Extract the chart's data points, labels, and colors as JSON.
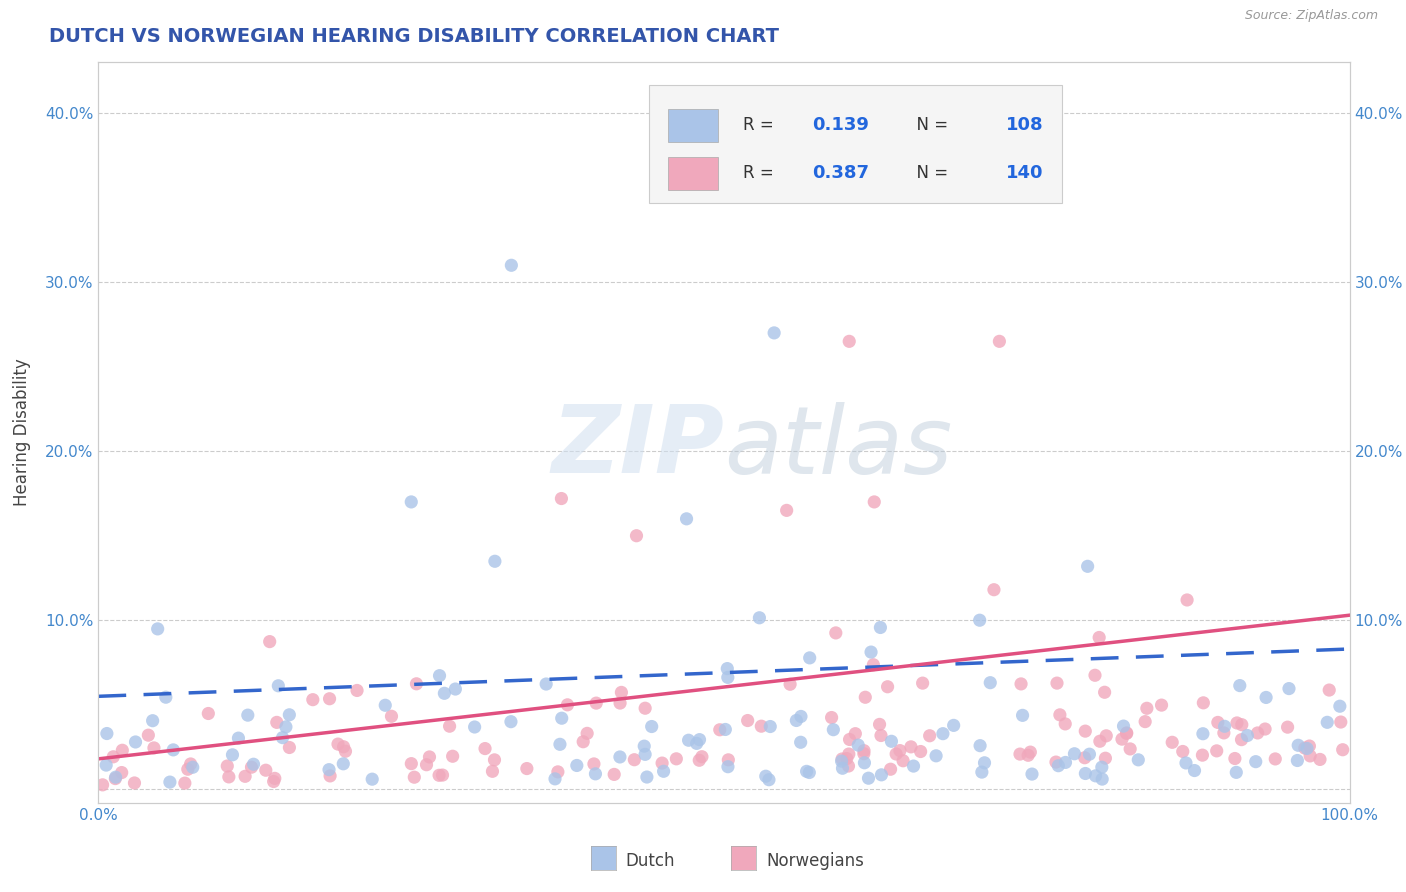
{
  "title": "DUTCH VS NORWEGIAN HEARING DISABILITY CORRELATION CHART",
  "source": "Source: ZipAtlas.com",
  "ylabel": "Hearing Disability",
  "xlabel": "",
  "xlim": [
    0,
    1
  ],
  "ylim": [
    -0.008,
    0.43
  ],
  "yticks": [
    0.0,
    0.1,
    0.2,
    0.3,
    0.4
  ],
  "ytick_labels_left": [
    "",
    "10.0%",
    "20.0%",
    "30.0%",
    "40.0%"
  ],
  "ytick_labels_right": [
    "",
    "10.0%",
    "20.0%",
    "30.0%",
    "40.0%"
  ],
  "xticks": [
    0.0,
    0.25,
    0.5,
    0.75,
    1.0
  ],
  "xtick_labels": [
    "0.0%",
    "",
    "",
    "",
    "100.0%"
  ],
  "dutch_color": "#aac4e8",
  "dutch_edge": "none",
  "norwegian_color": "#f0a8bc",
  "norwegian_edge": "none",
  "dutch_R": 0.139,
  "dutch_N": 108,
  "norwegian_R": 0.387,
  "norwegian_N": 140,
  "dutch_line_color": "#3366cc",
  "norwegian_line_color": "#e05080",
  "watermark_color": "#d0dff0",
  "background_color": "#ffffff",
  "grid_color": "#cccccc",
  "title_color": "#3355aa",
  "tick_color": "#4488cc",
  "ylabel_color": "#444444"
}
